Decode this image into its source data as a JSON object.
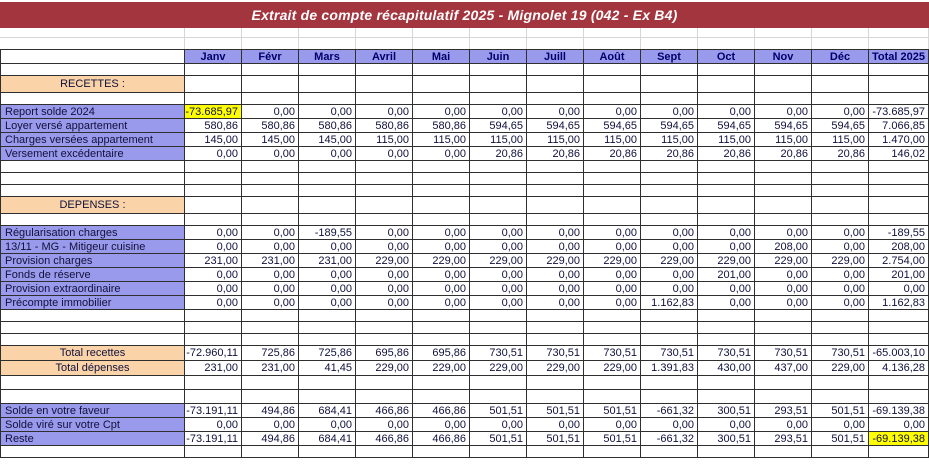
{
  "title": "Extrait de compte récapitulatif 2025 - Mignolet 19 (042 - Ex B4)",
  "colors": {
    "title_bg": "#A3353E",
    "title_text": "#FFFFFF",
    "header_bg": "#9A9AEC",
    "label_bg": "#9A9AEC",
    "section_bg": "#FAD3A8",
    "highlight": "#FFFF00",
    "text": "#10103C"
  },
  "columns": {
    "months": [
      "Janv",
      "Févr",
      "Mars",
      "Avril",
      "Mai",
      "Juin",
      "Juill",
      "Août",
      "Sept",
      "Oct",
      "Nov",
      "Déc"
    ],
    "total_label": "Total 2025"
  },
  "rows": [
    {
      "kind": "blank"
    },
    {
      "kind": "section",
      "label": "RECETTES :"
    },
    {
      "kind": "blank"
    },
    {
      "kind": "data",
      "label": "Report solde 2024",
      "values": [
        "-73.685,97",
        "0,00",
        "0,00",
        "0,00",
        "0,00",
        "0,00",
        "0,00",
        "0,00",
        "0,00",
        "0,00",
        "0,00",
        "0,00",
        "-73.685,97"
      ],
      "highlight": [
        0
      ]
    },
    {
      "kind": "data",
      "label": "Loyer versé appartement",
      "values": [
        "580,86",
        "580,86",
        "580,86",
        "580,86",
        "580,86",
        "594,65",
        "594,65",
        "594,65",
        "594,65",
        "594,65",
        "594,65",
        "594,65",
        "7.066,85"
      ]
    },
    {
      "kind": "data",
      "label": "Charges versées appartement",
      "values": [
        "145,00",
        "145,00",
        "145,00",
        "115,00",
        "115,00",
        "115,00",
        "115,00",
        "115,00",
        "115,00",
        "115,00",
        "115,00",
        "115,00",
        "1.470,00"
      ]
    },
    {
      "kind": "data",
      "label": "Versement excédentaire",
      "values": [
        "0,00",
        "0,00",
        "0,00",
        "0,00",
        "0,00",
        "20,86",
        "20,86",
        "20,86",
        "20,86",
        "20,86",
        "20,86",
        "20,86",
        "146,02"
      ]
    },
    {
      "kind": "blank"
    },
    {
      "kind": "blank"
    },
    {
      "kind": "blank"
    },
    {
      "kind": "section",
      "label": "DEPENSES :"
    },
    {
      "kind": "blank"
    },
    {
      "kind": "data",
      "label": "Régularisation charges",
      "values": [
        "0,00",
        "0,00",
        "-189,55",
        "0,00",
        "0,00",
        "0,00",
        "0,00",
        "0,00",
        "0,00",
        "0,00",
        "0,00",
        "0,00",
        "-189,55"
      ]
    },
    {
      "kind": "data",
      "label": "13/11 - MG - Mitigeur cuisine",
      "values": [
        "0,00",
        "0,00",
        "0,00",
        "0,00",
        "0,00",
        "0,00",
        "0,00",
        "0,00",
        "0,00",
        "0,00",
        "208,00",
        "0,00",
        "208,00"
      ]
    },
    {
      "kind": "data",
      "label": "Provision charges",
      "values": [
        "231,00",
        "231,00",
        "231,00",
        "229,00",
        "229,00",
        "229,00",
        "229,00",
        "229,00",
        "229,00",
        "229,00",
        "229,00",
        "229,00",
        "2.754,00"
      ]
    },
    {
      "kind": "data",
      "label": "Fonds de réserve",
      "values": [
        "0,00",
        "0,00",
        "0,00",
        "0,00",
        "0,00",
        "0,00",
        "0,00",
        "0,00",
        "0,00",
        "201,00",
        "0,00",
        "0,00",
        "201,00"
      ]
    },
    {
      "kind": "data",
      "label": "Provision extraordinaire",
      "values": [
        "0,00",
        "0,00",
        "0,00",
        "0,00",
        "0,00",
        "0,00",
        "0,00",
        "0,00",
        "0,00",
        "0,00",
        "0,00",
        "0,00",
        "0,00"
      ]
    },
    {
      "kind": "data",
      "label": "Précompte immobilier",
      "values": [
        "0,00",
        "0,00",
        "0,00",
        "0,00",
        "0,00",
        "0,00",
        "0,00",
        "0,00",
        "1.162,83",
        "0,00",
        "0,00",
        "0,00",
        "1.162,83"
      ]
    },
    {
      "kind": "blank"
    },
    {
      "kind": "blank"
    },
    {
      "kind": "blank"
    },
    {
      "kind": "total",
      "label": "Total recettes",
      "values": [
        "-72.960,11",
        "725,86",
        "725,86",
        "695,86",
        "695,86",
        "730,51",
        "730,51",
        "730,51",
        "730,51",
        "730,51",
        "730,51",
        "730,51",
        "-65.003,10"
      ]
    },
    {
      "kind": "total",
      "label": "Total dépenses",
      "values": [
        "231,00",
        "231,00",
        "41,45",
        "229,00",
        "229,00",
        "229,00",
        "229,00",
        "229,00",
        "1.391,83",
        "430,00",
        "437,00",
        "229,00",
        "4.136,28"
      ]
    },
    {
      "kind": "blank-tall"
    },
    {
      "kind": "blank-tall"
    },
    {
      "kind": "data",
      "label": "Solde en votre faveur",
      "values": [
        "-73.191,11",
        "494,86",
        "684,41",
        "466,86",
        "466,86",
        "501,51",
        "501,51",
        "501,51",
        "-661,32",
        "300,51",
        "293,51",
        "501,51",
        "-69.139,38"
      ]
    },
    {
      "kind": "data",
      "label": "Solde viré sur votre Cpt",
      "values": [
        "0,00",
        "0,00",
        "0,00",
        "0,00",
        "0,00",
        "0,00",
        "0,00",
        "0,00",
        "0,00",
        "0,00",
        "0,00",
        "0,00",
        "0,00"
      ]
    },
    {
      "kind": "data",
      "label": "Reste",
      "values": [
        "-73.191,11",
        "494,86",
        "684,41",
        "466,86",
        "466,86",
        "501,51",
        "501,51",
        "501,51",
        "-661,32",
        "300,51",
        "293,51",
        "501,51",
        "-69.139,38"
      ],
      "highlight": [
        12
      ]
    },
    {
      "kind": "blank"
    }
  ]
}
